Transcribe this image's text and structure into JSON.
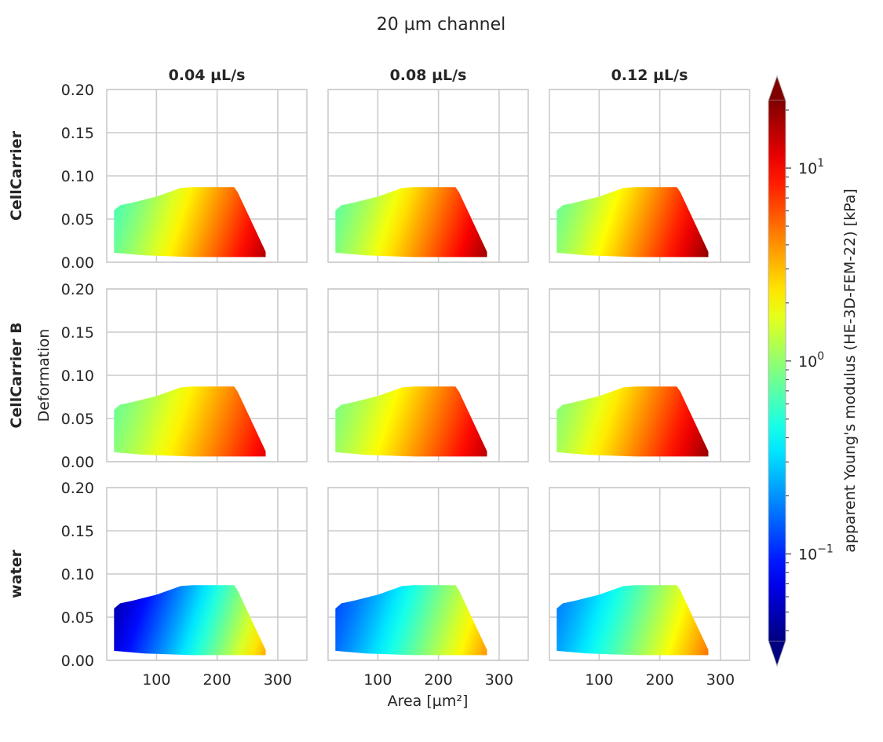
{
  "figure": {
    "title": "20 µm channel",
    "xlabel": "Area [µm²]",
    "ylabel": "Deformation",
    "columns": [
      "0.04 µL/s",
      "0.08 µL/s",
      "0.12 µL/s"
    ],
    "rows": [
      "CellCarrier",
      "CellCarrier B",
      "water"
    ]
  },
  "colorbar": {
    "label": "apparent Young's modulus (HE-3D-FEM-22) [kPa]",
    "colormap": "jet",
    "scale": "log",
    "range": [
      0.0355,
      22.4
    ],
    "extend": "both",
    "ticks": [
      {
        "value": 0.1,
        "base": "10",
        "exp": "−1"
      },
      {
        "value": 1,
        "base": "10",
        "exp": "0"
      },
      {
        "value": 10,
        "base": "10",
        "exp": "1"
      }
    ]
  },
  "chart_data": {
    "type": "heatmap",
    "x_range": [
      18,
      348
    ],
    "y_range": [
      0,
      0.2
    ],
    "x_ticks": [
      "100",
      "200",
      "300"
    ],
    "y_ticks": [
      "0.00",
      "0.05",
      "0.10",
      "0.15",
      "0.20"
    ],
    "grid": true,
    "data_region_outline": [
      [
        30,
        0.011
      ],
      [
        30,
        0.06
      ],
      [
        40,
        0.066
      ],
      [
        60,
        0.069
      ],
      [
        100,
        0.076
      ],
      [
        140,
        0.086
      ],
      [
        160,
        0.087
      ],
      [
        228,
        0.087
      ],
      [
        234,
        0.081
      ],
      [
        280,
        0.012
      ],
      [
        280,
        0.006
      ],
      [
        160,
        0.006
      ],
      [
        80,
        0.008
      ],
      [
        30,
        0.011
      ]
    ],
    "panels": [
      {
        "row": "CellCarrier",
        "column": "0.04 µL/s",
        "modulus_range_kPa": [
          0.65,
          17
        ]
      },
      {
        "row": "CellCarrier",
        "column": "0.08 µL/s",
        "modulus_range_kPa": [
          0.75,
          19
        ]
      },
      {
        "row": "CellCarrier",
        "column": "0.12 µL/s",
        "modulus_range_kPa": [
          0.8,
          21
        ]
      },
      {
        "row": "CellCarrier B",
        "column": "0.04 µL/s",
        "modulus_range_kPa": [
          0.8,
          12
        ]
      },
      {
        "row": "CellCarrier B",
        "column": "0.08 µL/s",
        "modulus_range_kPa": [
          0.9,
          16
        ]
      },
      {
        "row": "CellCarrier B",
        "column": "0.12 µL/s",
        "modulus_range_kPa": [
          0.95,
          20
        ]
      },
      {
        "row": "water",
        "column": "0.04 µL/s",
        "modulus_range_kPa": [
          0.05,
          3.5
        ]
      },
      {
        "row": "water",
        "column": "0.08 µL/s",
        "modulus_range_kPa": [
          0.13,
          4
        ]
      },
      {
        "row": "water",
        "column": "0.12 µL/s",
        "modulus_range_kPa": [
          0.18,
          5
        ]
      }
    ]
  }
}
